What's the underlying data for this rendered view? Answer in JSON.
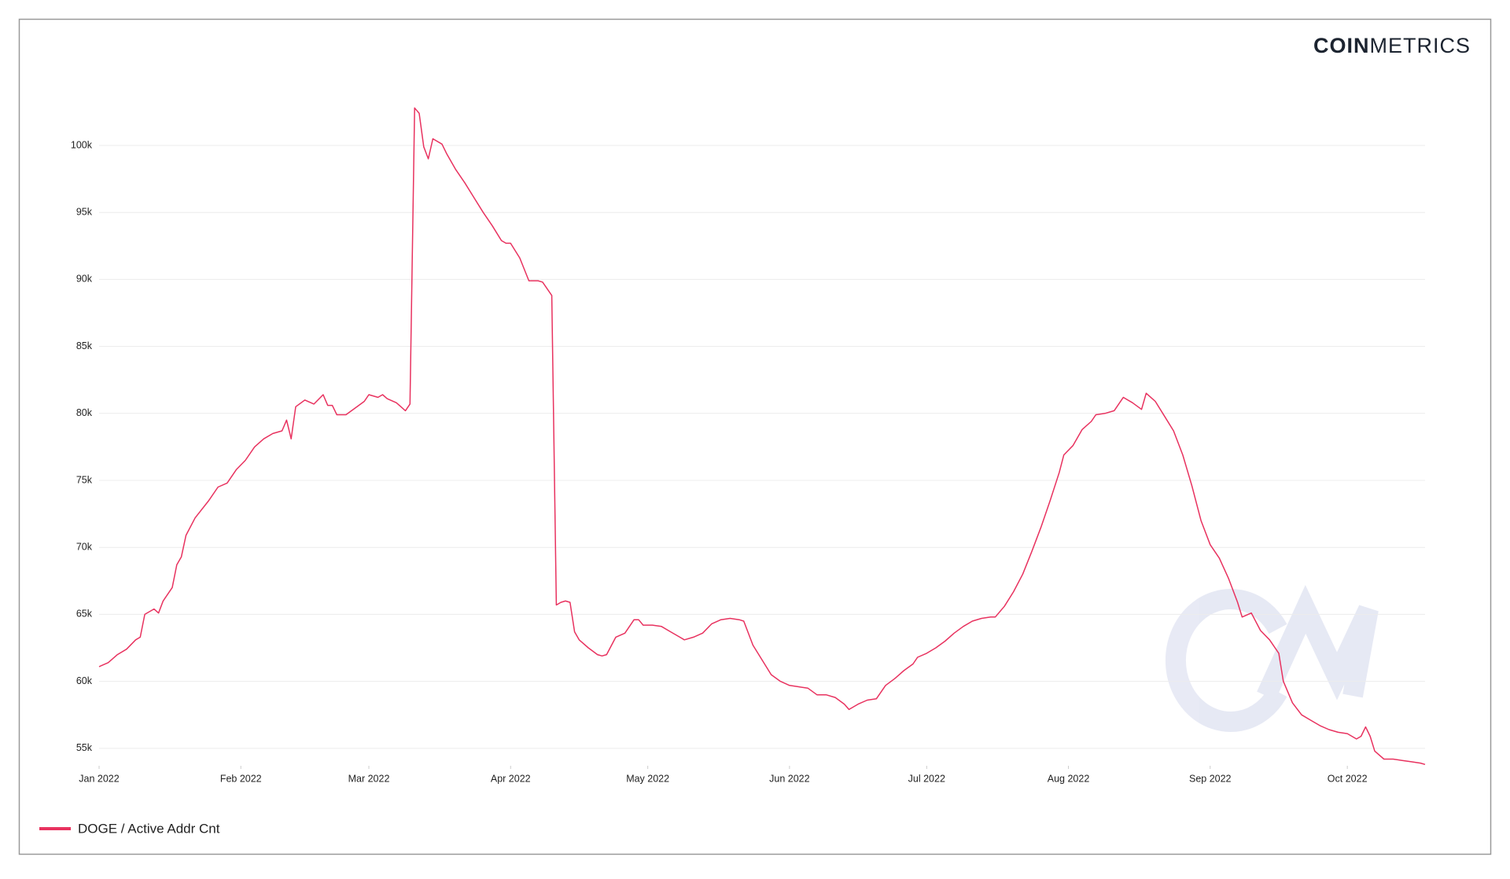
{
  "header": {
    "brand_bold": "COIN",
    "brand_light": "METRICS"
  },
  "chart_data": {
    "type": "line",
    "x": [
      0,
      2,
      4,
      6,
      8,
      9,
      10,
      12,
      13,
      14,
      16,
      17,
      18,
      19,
      21,
      24,
      26,
      28,
      30,
      32,
      34,
      36,
      38,
      40,
      41,
      42,
      43,
      45,
      47,
      49,
      50,
      51,
      52,
      54,
      56,
      58,
      59,
      61,
      62,
      63,
      65,
      67,
      68,
      69,
      70,
      71,
      72,
      73,
      75,
      76,
      78,
      80,
      82,
      84,
      86,
      88,
      89,
      90,
      92,
      94,
      96,
      97,
      99,
      100,
      101,
      102,
      103,
      104,
      105,
      107,
      109,
      110,
      111,
      113,
      115,
      117,
      118,
      119,
      121,
      123,
      125,
      127,
      128,
      130,
      132,
      134,
      136,
      138,
      140,
      141,
      143,
      145,
      147,
      149,
      151,
      153,
      155,
      157,
      159,
      161,
      163,
      164,
      166,
      168,
      170,
      172,
      174,
      176,
      178,
      179,
      181,
      183,
      185,
      187,
      189,
      191,
      193,
      195,
      196,
      198,
      200,
      202,
      204,
      206,
      208,
      210,
      211,
      213,
      215,
      217,
      218,
      220,
      222,
      224,
      226,
      228,
      229,
      231,
      233,
      235,
      237,
      239,
      241,
      243,
      245,
      247,
      249,
      250,
      252,
      254,
      256,
      258,
      259,
      261,
      263,
      265,
      267,
      269,
      271,
      273,
      275,
      276,
      277,
      278,
      279,
      281,
      283,
      285,
      287,
      289,
      290
    ],
    "series": [
      {
        "name": "DOGE / Active Addr Cnt",
        "color": "#e8325f",
        "values": [
          61100,
          61400,
          62000,
          62400,
          63100,
          63300,
          65000,
          65400,
          65100,
          66000,
          67000,
          68700,
          69300,
          70900,
          72200,
          73500,
          74500,
          74800,
          75800,
          76500,
          77500,
          78100,
          78500,
          78700,
          79500,
          78100,
          80500,
          81000,
          80700,
          81400,
          80600,
          80600,
          79900,
          79900,
          80400,
          80900,
          81400,
          81200,
          81400,
          81100,
          80800,
          80200,
          80700,
          102800,
          102400,
          99900,
          99000,
          100500,
          100100,
          99400,
          98200,
          97200,
          96100,
          95000,
          94000,
          92900,
          92700,
          92700,
          91600,
          89900,
          89900,
          89800,
          88800,
          65700,
          65900,
          66000,
          65900,
          63700,
          63100,
          62500,
          62000,
          61900,
          62000,
          63300,
          63600,
          64600,
          64600,
          64200,
          64200,
          64100,
          63700,
          63300,
          63100,
          63300,
          63600,
          64300,
          64600,
          64700,
          64600,
          64500,
          62700,
          61600,
          60500,
          60000,
          59700,
          59600,
          59500,
          59000,
          59000,
          58800,
          58300,
          57900,
          58300,
          58600,
          58700,
          59700,
          60200,
          60800,
          61300,
          61800,
          62100,
          62500,
          63000,
          63600,
          64100,
          64500,
          64700,
          64800,
          64800,
          65600,
          66700,
          68000,
          69700,
          71500,
          73500,
          75600,
          76900,
          77600,
          78800,
          79400,
          79900,
          80000,
          80200,
          81200,
          80800,
          80300,
          81500,
          80900,
          79800,
          78700,
          76900,
          74600,
          72000,
          70200,
          69200,
          67700,
          65900,
          64800,
          65100,
          63800,
          63100,
          62100,
          60000,
          58400,
          57500,
          57100,
          56700,
          56400,
          56200,
          56100,
          55700,
          55900,
          56600,
          55900,
          54800,
          54200,
          54200,
          54100,
          54000,
          53900,
          53800
        ]
      }
    ],
    "xlim": [
      0,
      290
    ],
    "xticks": [
      {
        "value": 0,
        "label": "Jan 2022"
      },
      {
        "value": 31,
        "label": "Feb 2022"
      },
      {
        "value": 59,
        "label": "Mar 2022"
      },
      {
        "value": 90,
        "label": "Apr 2022"
      },
      {
        "value": 120,
        "label": "May 2022"
      },
      {
        "value": 151,
        "label": "Jun 2022"
      },
      {
        "value": 181,
        "label": "Jul 2022"
      },
      {
        "value": 212,
        "label": "Aug 2022"
      },
      {
        "value": 243,
        "label": "Sep 2022"
      },
      {
        "value": 273,
        "label": "Oct 2022"
      }
    ],
    "ylim": [
      53700,
      104400
    ],
    "yticks": [
      {
        "value": 55000,
        "label": "55k"
      },
      {
        "value": 60000,
        "label": "60k"
      },
      {
        "value": 65000,
        "label": "65k"
      },
      {
        "value": 70000,
        "label": "70k"
      },
      {
        "value": 75000,
        "label": "75k"
      },
      {
        "value": 80000,
        "label": "80k"
      },
      {
        "value": 85000,
        "label": "85k"
      },
      {
        "value": 90000,
        "label": "90k"
      },
      {
        "value": 95000,
        "label": "95k"
      },
      {
        "value": 100000,
        "label": "100k"
      }
    ],
    "grid": true
  }
}
